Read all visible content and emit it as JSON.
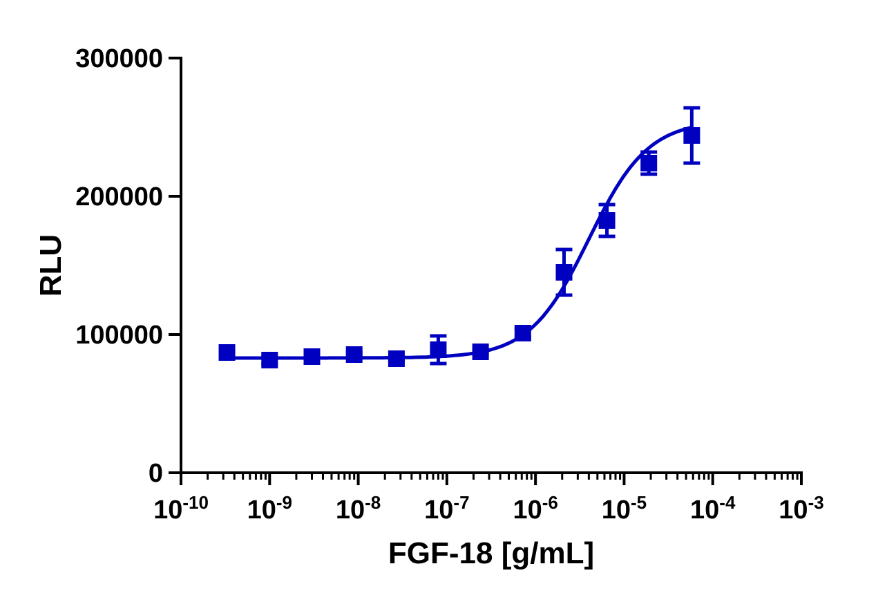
{
  "chart_data": {
    "type": "scatter",
    "title": "",
    "xlabel": "FGF-18 [g/mL]",
    "ylabel": "RLU",
    "x_scale": "log",
    "xlim": [
      1e-10,
      0.001
    ],
    "ylim": [
      0,
      300000
    ],
    "x_ticks": [
      {
        "base": "10",
        "exp": "-10"
      },
      {
        "base": "10",
        "exp": "-9"
      },
      {
        "base": "10",
        "exp": "-8"
      },
      {
        "base": "10",
        "exp": "-7"
      },
      {
        "base": "10",
        "exp": "-6"
      },
      {
        "base": "10",
        "exp": "-5"
      },
      {
        "base": "10",
        "exp": "-4"
      },
      {
        "base": "10",
        "exp": "-3"
      }
    ],
    "y_ticks": [
      "0",
      "100000",
      "200000",
      "300000"
    ],
    "grid": false,
    "legend": "none",
    "marker": "square",
    "color": "#0000C0",
    "series": [
      {
        "x": [
          3.3e-10,
          1e-09,
          3e-09,
          9e-09,
          2.7e-08,
          8e-08,
          2.4e-07,
          7.2e-07,
          2.1e-06,
          6.4e-06,
          1.9e-05,
          5.8e-05
        ],
        "y": [
          87000,
          81500,
          84000,
          85500,
          82500,
          89000,
          87500,
          101000,
          145000,
          182500,
          224000,
          244000
        ],
        "error": [
          1500,
          3000,
          1500,
          1500,
          1500,
          10000,
          1500,
          3000,
          16500,
          11500,
          8000,
          20000
        ]
      }
    ],
    "fit_curve": {
      "model": "4PL",
      "bottom": 83000,
      "top": 255000,
      "ec50": 4e-06,
      "hill": 1.3
    }
  }
}
